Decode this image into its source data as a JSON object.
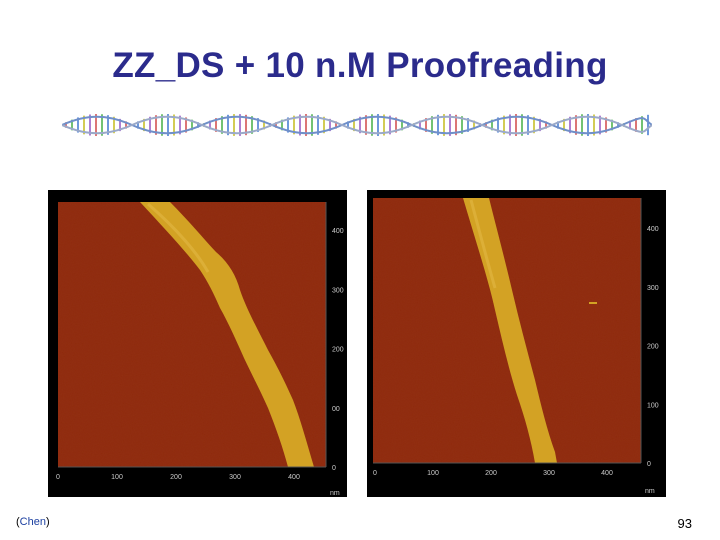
{
  "slide": {
    "title": "ZZ_DS + 10 n.M Proofreading",
    "citation_open": "(",
    "citation": "Chen",
    "citation_close": ")",
    "page_number": "93"
  },
  "images": {
    "left": {
      "x_ticks": [
        "0",
        "100",
        "200",
        "300",
        "400"
      ],
      "y_ticks": [
        "400",
        "300",
        "200",
        "00",
        "0"
      ],
      "unit": "nm"
    },
    "right": {
      "x_ticks": [
        "0",
        "100",
        "200",
        "300",
        "400"
      ],
      "y_ticks": [
        "400",
        "300",
        "200",
        "100",
        "0"
      ],
      "unit": "nm"
    }
  },
  "colors": {
    "title": "#2b2b8c",
    "substrate": "#8e2a0c",
    "dna_strand": "#d3a224",
    "citation": "#1b3fa0"
  }
}
